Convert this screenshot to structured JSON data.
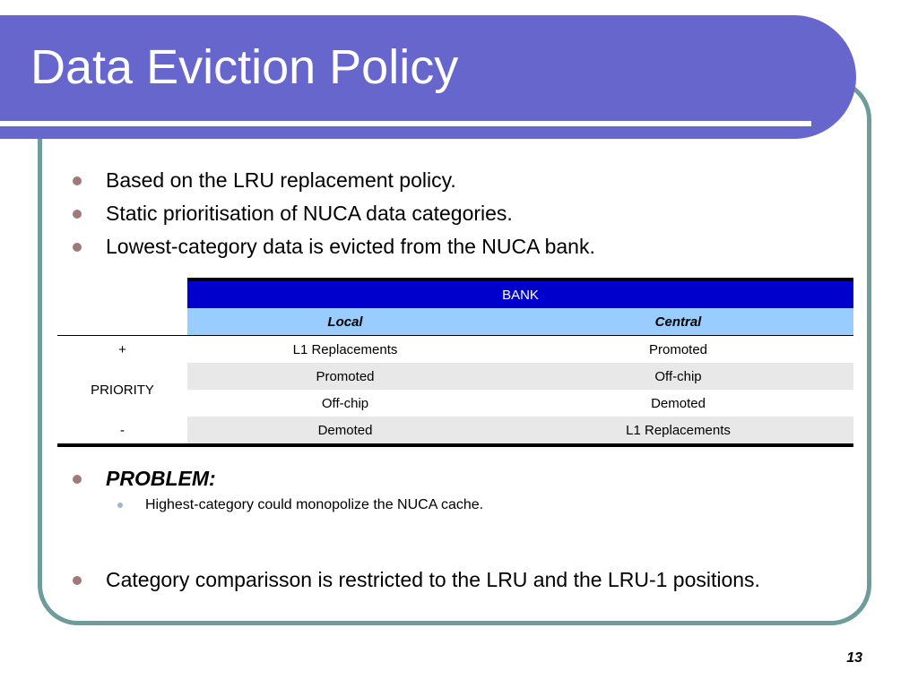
{
  "slide": {
    "title": "Data Eviction Policy",
    "bullets": [
      "Based on the LRU replacement policy.",
      "Static prioritisation of NUCA data categories.",
      "Lowest-category data is evicted from the NUCA bank."
    ],
    "problem_label": "PROBLEM:",
    "problem_sub": "Highest-category could monopolize the NUCA cache.",
    "last_bullet": "Category comparisson is restricted to the LRU and the LRU-1 positions.",
    "page_number": "13"
  },
  "table": {
    "header": "BANK",
    "columns": [
      "Local",
      "Central"
    ],
    "row_labels": {
      "plus": "+",
      "priority": "PRIORITY",
      "minus": "-"
    },
    "rows": [
      [
        "L1 Replacements",
        "Promoted"
      ],
      [
        "Promoted",
        "Off-chip"
      ],
      [
        "Off-chip",
        "Demoted"
      ],
      [
        "Demoted",
        "L1 Replacements"
      ]
    ]
  },
  "colors": {
    "title_band": "#6666cc",
    "frame_border": "#6e9c9c",
    "bank_header": "#0000cc",
    "sub_header": "#99ccff",
    "bullet_dot": "#a07a78"
  }
}
